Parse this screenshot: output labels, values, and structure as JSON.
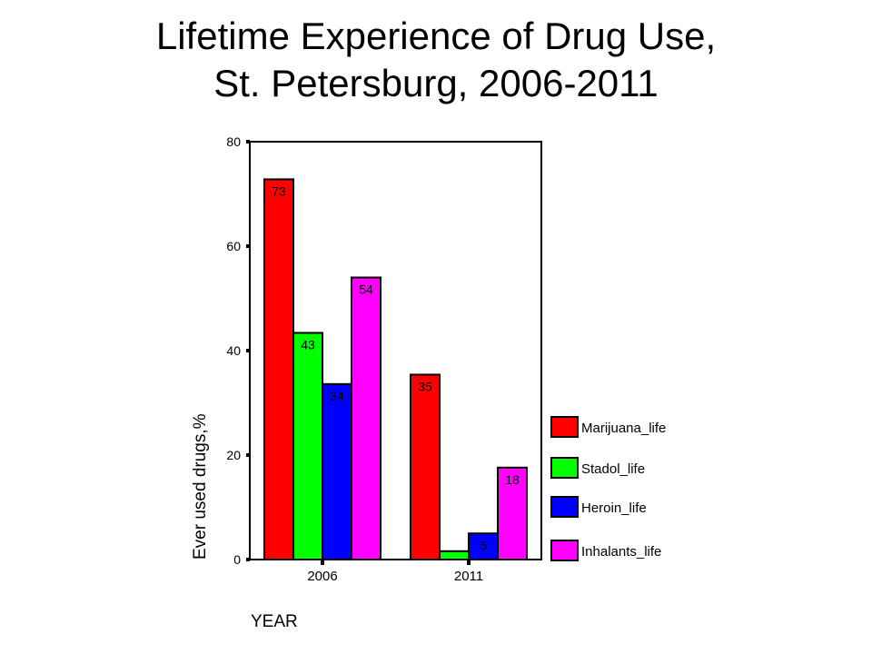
{
  "chart_data": {
    "type": "bar",
    "title_line1": "Lifetime Experience of Drug Use,",
    "title_line2": "St. Petersburg, 2006-2011",
    "xlabel": "YEAR",
    "ylabel": "Ever used drugs,%",
    "categories": [
      "2006",
      "2011"
    ],
    "ylim": [
      0,
      80
    ],
    "yticks": [
      0,
      20,
      40,
      60,
      80
    ],
    "grid": false,
    "legend_position": "right",
    "series": [
      {
        "name": "Marijuana_life",
        "color": "#ff0000",
        "values": [
          72.8,
          35.4
        ],
        "labels": [
          "73",
          "35"
        ]
      },
      {
        "name": "Stadol_life",
        "color": "#00ff00",
        "values": [
          43.4,
          1.6
        ],
        "labels": [
          "43",
          ""
        ]
      },
      {
        "name": "Heroin_life",
        "color": "#0000ff",
        "values": [
          33.6,
          5.0
        ],
        "labels": [
          "34",
          "5"
        ]
      },
      {
        "name": "Inhalants_life",
        "color": "#ff00ff",
        "values": [
          54.0,
          17.6
        ],
        "labels": [
          "54",
          "18"
        ]
      }
    ]
  }
}
